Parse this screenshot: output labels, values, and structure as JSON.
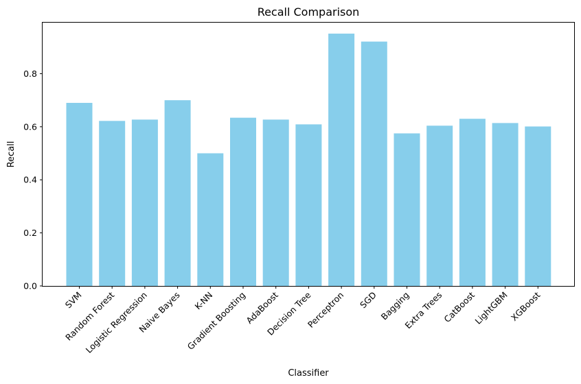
{
  "chart_data": {
    "type": "bar",
    "title": "Recall Comparison",
    "xlabel": "Classifier",
    "ylabel": "Recall",
    "categories": [
      "SVM",
      "Random Forest",
      "Logistic Regression",
      "Naive Bayes",
      "K-NN",
      "Gradient Boosting",
      "AdaBoost",
      "Decision Tree",
      "Perceptron",
      "SGD",
      "Bagging",
      "Extra Trees",
      "CatBoost",
      "LightGBM",
      "XGBoost"
    ],
    "values": [
      0.69,
      0.622,
      0.627,
      0.7,
      0.5,
      0.634,
      0.627,
      0.609,
      0.951,
      0.921,
      0.575,
      0.604,
      0.63,
      0.614,
      0.601
    ],
    "ylim": [
      0,
      0.995
    ],
    "yticks": [
      0.0,
      0.2,
      0.4,
      0.6,
      0.8
    ],
    "ytick_labels": [
      "0.0",
      "0.2",
      "0.4",
      "0.6",
      "0.8"
    ],
    "bar_color": "#87ceeb",
    "grid": false,
    "legend": "none"
  }
}
